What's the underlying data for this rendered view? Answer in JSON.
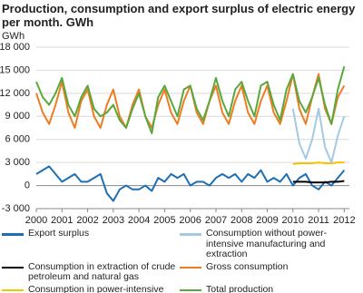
{
  "chart_data": {
    "type": "line",
    "title": "Production, consumption and export surplus of electric energy per month. GWh",
    "y_label": "GWh",
    "x": [
      2000,
      2000.25,
      2000.5,
      2000.75,
      2001,
      2001.25,
      2001.5,
      2001.75,
      2002,
      2002.25,
      2002.5,
      2002.75,
      2003,
      2003.25,
      2003.5,
      2003.75,
      2004,
      2004.25,
      2004.5,
      2004.75,
      2005,
      2005.25,
      2005.5,
      2005.75,
      2006,
      2006.25,
      2006.5,
      2006.75,
      2007,
      2007.25,
      2007.5,
      2007.75,
      2008,
      2008.25,
      2008.5,
      2008.75,
      2009,
      2009.25,
      2009.5,
      2009.75,
      2010,
      2010.25,
      2010.5,
      2010.75,
      2011,
      2011.25,
      2011.5,
      2011.75,
      2012
    ],
    "xlim": [
      2000,
      2012.2
    ],
    "xticks": [
      2000,
      2001,
      2002,
      2003,
      2004,
      2005,
      2006,
      2007,
      2008,
      2009,
      2010,
      2011,
      2012
    ],
    "ylim": [
      -3000,
      18000
    ],
    "yticks": [
      {
        "value": -3000,
        "label": "-3 000"
      },
      0,
      {
        "value": 3000,
        "label": "3 000"
      },
      {
        "value": 6000,
        "label": "6 000"
      },
      {
        "value": 9000,
        "label": "9 000"
      },
      {
        "value": 12000,
        "label": "12 000"
      },
      {
        "value": 15000,
        "label": "15 000"
      },
      {
        "value": 18000,
        "label": "18 000"
      }
    ],
    "grid": true,
    "series": [
      {
        "name": "Export surplus",
        "color": "#1c6fb5",
        "values": [
          1500,
          2000,
          2500,
          1500,
          500,
          1000,
          1500,
          500,
          500,
          1000,
          1500,
          -1000,
          -2000,
          -500,
          0,
          -500,
          -500,
          0,
          -700,
          1000,
          500,
          1500,
          1000,
          1500,
          0,
          500,
          500,
          0,
          1000,
          1500,
          1000,
          1500,
          500,
          1500,
          1000,
          2000,
          500,
          1000,
          500,
          1500,
          0,
          1000,
          1500,
          0,
          -500,
          500,
          0,
          1000,
          2000
        ]
      },
      {
        "name": "Consumption in extraction of crude petroleum and natural gas",
        "color": "#000000",
        "values": [
          null,
          null,
          null,
          null,
          null,
          null,
          null,
          null,
          null,
          null,
          null,
          null,
          null,
          null,
          null,
          null,
          null,
          null,
          null,
          null,
          null,
          null,
          null,
          null,
          null,
          null,
          null,
          null,
          null,
          null,
          null,
          null,
          null,
          null,
          null,
          null,
          null,
          null,
          null,
          null,
          500,
          500,
          500,
          400,
          400,
          400,
          500,
          500,
          600
        ]
      },
      {
        "name": "Consumption in power-intensive manufacturing",
        "color": "#f5c400",
        "values": [
          null,
          null,
          null,
          null,
          null,
          null,
          null,
          null,
          null,
          null,
          null,
          null,
          null,
          null,
          null,
          null,
          null,
          null,
          null,
          null,
          null,
          null,
          null,
          null,
          null,
          null,
          null,
          null,
          null,
          null,
          null,
          null,
          null,
          null,
          null,
          null,
          null,
          null,
          null,
          null,
          2800,
          2900,
          2900,
          2900,
          3000,
          2900,
          2900,
          3000,
          3000
        ]
      },
      {
        "name": "Consumption without power-intensive manufacturing and extraction",
        "color": "#a3c9e3",
        "values": [
          null,
          null,
          null,
          null,
          null,
          null,
          null,
          null,
          null,
          null,
          null,
          null,
          null,
          null,
          null,
          null,
          null,
          null,
          null,
          null,
          null,
          null,
          null,
          null,
          null,
          null,
          null,
          null,
          null,
          null,
          null,
          null,
          null,
          null,
          null,
          null,
          null,
          null,
          null,
          null,
          10000,
          5500,
          3500,
          6000,
          10000,
          5000,
          3000,
          6500,
          9000
        ]
      },
      {
        "name": "Gross consumption",
        "color": "#ee7d22",
        "values": [
          12000,
          9500,
          8000,
          10500,
          13500,
          9500,
          7500,
          11000,
          12500,
          9000,
          7500,
          10500,
          12500,
          9000,
          7500,
          10500,
          12500,
          9000,
          7500,
          10500,
          12500,
          9500,
          8000,
          11000,
          13000,
          9500,
          8000,
          11000,
          13000,
          9500,
          8000,
          11000,
          13000,
          9500,
          8000,
          11000,
          13000,
          9500,
          8000,
          11000,
          14500,
          10000,
          8000,
          11500,
          14500,
          10000,
          8000,
          11500,
          13000
        ]
      },
      {
        "name": "Total production",
        "color": "#5aa83c",
        "values": [
          13500,
          11500,
          10500,
          12000,
          14000,
          10500,
          9000,
          11500,
          13000,
          10000,
          9000,
          9500,
          10500,
          8500,
          7500,
          10000,
          12000,
          9000,
          6800,
          11500,
          13000,
          11000,
          9000,
          12500,
          13000,
          10000,
          8500,
          11000,
          14000,
          11000,
          9000,
          12500,
          13500,
          11000,
          9000,
          13000,
          13500,
          10500,
          8500,
          12500,
          14500,
          11000,
          9500,
          11500,
          14000,
          10500,
          8000,
          12500,
          15500
        ]
      }
    ]
  }
}
